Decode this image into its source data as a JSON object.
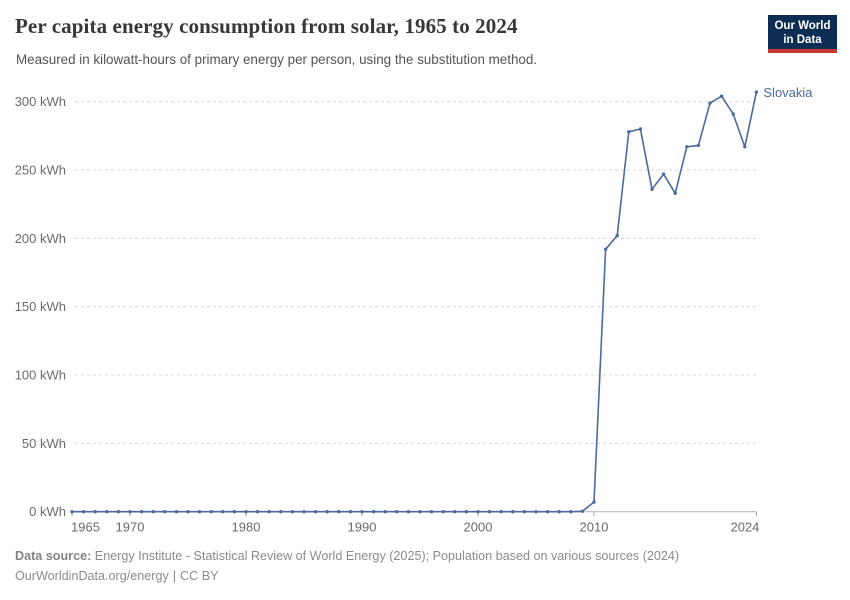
{
  "header": {
    "title": "Per capita energy consumption from solar, 1965 to 2024",
    "subtitle": "Measured in kilowatt-hours of primary energy per person, using the substitution method.",
    "logo": {
      "line1": "Our World",
      "line2": "in Data",
      "bg_color": "#0d2d52",
      "accent_color": "#c2382e",
      "text_color": "#ffffff"
    }
  },
  "chart_data": {
    "type": "line",
    "title": "Per capita energy consumption from solar, 1965 to 2024",
    "subtitle": "Measured in kilowatt-hours of primary energy per person, using the substitution method.",
    "xlabel": "",
    "ylabel": "",
    "unit": "kWh",
    "grid": "horizontal-dashed",
    "legend_position": "end-of-line-label",
    "xlim": [
      1965,
      2024
    ],
    "ylim": [
      0,
      300
    ],
    "xticks": [
      1965,
      1970,
      1980,
      1990,
      2000,
      2010,
      2024
    ],
    "yticks": [
      0,
      50,
      100,
      150,
      200,
      250,
      300
    ],
    "ytick_format": "{v} kWh",
    "x": [
      1965,
      1966,
      1967,
      1968,
      1969,
      1970,
      1971,
      1972,
      1973,
      1974,
      1975,
      1976,
      1977,
      1978,
      1979,
      1980,
      1981,
      1982,
      1983,
      1984,
      1985,
      1986,
      1987,
      1988,
      1989,
      1990,
      1991,
      1992,
      1993,
      1994,
      1995,
      1996,
      1997,
      1998,
      1999,
      2000,
      2001,
      2002,
      2003,
      2004,
      2005,
      2006,
      2007,
      2008,
      2009,
      2010,
      2011,
      2012,
      2013,
      2014,
      2015,
      2016,
      2017,
      2018,
      2019,
      2020,
      2021,
      2022,
      2023,
      2024
    ],
    "series": [
      {
        "name": "Slovakia",
        "color": "#4c6a9c",
        "values": [
          0,
          0,
          0,
          0,
          0,
          0,
          0,
          0,
          0,
          0,
          0,
          0,
          0,
          0,
          0,
          0,
          0,
          0,
          0,
          0,
          0,
          0,
          0,
          0,
          0,
          0,
          0,
          0,
          0,
          0,
          0,
          0,
          0,
          0,
          0,
          0,
          0,
          0,
          0,
          0,
          0,
          0,
          0,
          0,
          0.3,
          7,
          192,
          202,
          278,
          280,
          236,
          247,
          233,
          267,
          268,
          299,
          304,
          291,
          267,
          307
        ]
      }
    ],
    "end_label": "Slovakia"
  },
  "footer": {
    "source_label": "Data source:",
    "source_text": "Energy Institute - Statistical Review of World Energy (2025); Population based on various sources (2024)",
    "link": "OurWorldinData.org/energy",
    "separator": "|",
    "license": "CC BY"
  },
  "colors": {
    "line": "#4c6a9c",
    "grid": "#d6d6d6",
    "axis": "#b3b3b3",
    "tick_text": "#6b6b6b",
    "title_text": "#373737",
    "subtitle_text": "#545454",
    "footer_text": "#8b8b8b"
  }
}
